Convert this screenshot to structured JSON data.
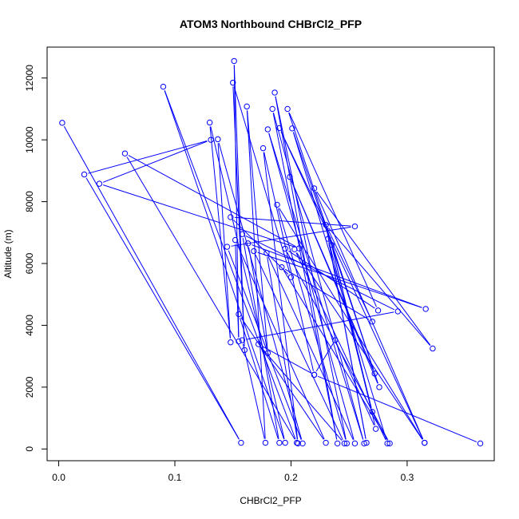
{
  "chart_data": {
    "type": "line",
    "title": "ATOM3 Northbound CHBrCl2_PFP",
    "xlabel": "CHBrCl2_PFP",
    "ylabel": "Altitude (m)",
    "xlim": [
      -0.01,
      0.375
    ],
    "ylim": [
      -380,
      13000
    ],
    "x_ticks": [
      0.0,
      0.1,
      0.2,
      0.3
    ],
    "x_tick_labels": [
      "0.0",
      "0.1",
      "0.2",
      "0.3"
    ],
    "y_ticks": [
      0,
      2000,
      4000,
      6000,
      8000,
      10000,
      12000
    ],
    "y_tick_labels": [
      "0",
      "2000",
      "4000",
      "6000",
      "8000",
      "10000",
      "12000"
    ],
    "grid": false,
    "legend": "none",
    "series": [
      {
        "color": "#0000ff",
        "marker": "open-circle",
        "points": [
          [
            0.003,
            10550
          ],
          [
            0.157,
            200
          ],
          [
            0.022,
            8880
          ],
          [
            0.131,
            10000
          ],
          [
            0.035,
            8580
          ],
          [
            0.207,
            6490
          ],
          [
            0.057,
            9560
          ],
          [
            0.205,
            200
          ],
          [
            0.09,
            11720
          ],
          [
            0.195,
            200
          ],
          [
            0.13,
            10560
          ],
          [
            0.148,
            3450
          ],
          [
            0.137,
            10020
          ],
          [
            0.21,
            180
          ],
          [
            0.145,
            6540
          ],
          [
            0.255,
            7200
          ],
          [
            0.148,
            7500
          ],
          [
            0.2,
            5560
          ],
          [
            0.15,
            11850
          ],
          [
            0.16,
            3200
          ],
          [
            0.151,
            12550
          ],
          [
            0.155,
            3480
          ],
          [
            0.152,
            6760
          ],
          [
            0.23,
            200
          ],
          [
            0.155,
            4360
          ],
          [
            0.19,
            200
          ],
          [
            0.158,
            6950
          ],
          [
            0.292,
            4450
          ],
          [
            0.158,
            3520
          ],
          [
            0.178,
            200
          ],
          [
            0.162,
            11080
          ],
          [
            0.18,
            3100
          ],
          [
            0.163,
            6650
          ],
          [
            0.316,
            4530
          ],
          [
            0.168,
            6400
          ],
          [
            0.246,
            180
          ],
          [
            0.172,
            3390
          ],
          [
            0.22,
            2400
          ],
          [
            0.176,
            9730
          ],
          [
            0.206,
            180
          ],
          [
            0.179,
            6340
          ],
          [
            0.255,
            180
          ],
          [
            0.18,
            10340
          ],
          [
            0.263,
            180
          ],
          [
            0.184,
            11000
          ],
          [
            0.24,
            180
          ],
          [
            0.186,
            11530
          ],
          [
            0.248,
            180
          ],
          [
            0.188,
            7900
          ],
          [
            0.315,
            200
          ],
          [
            0.19,
            10380
          ],
          [
            0.27,
            4120
          ],
          [
            0.192,
            5880
          ],
          [
            0.285,
            180
          ],
          [
            0.195,
            6480
          ],
          [
            0.275,
            4480
          ],
          [
            0.197,
            11000
          ],
          [
            0.272,
            2440
          ],
          [
            0.199,
            8800
          ],
          [
            0.276,
            2000
          ],
          [
            0.201,
            10370
          ],
          [
            0.283,
            180
          ],
          [
            0.203,
            6460
          ],
          [
            0.315,
            200
          ],
          [
            0.22,
            8430
          ],
          [
            0.322,
            3250
          ],
          [
            0.23,
            7250
          ],
          [
            0.265,
            200
          ],
          [
            0.232,
            6800
          ],
          [
            0.27,
            1200
          ],
          [
            0.235,
            6600
          ],
          [
            0.273,
            650
          ],
          [
            0.238,
            3520
          ],
          [
            0.22,
            2400
          ],
          [
            0.363,
            180
          ]
        ]
      }
    ]
  }
}
